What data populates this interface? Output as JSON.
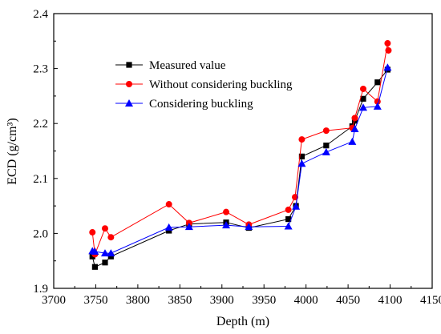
{
  "chart_data": {
    "type": "line",
    "xlabel": "Depth (m)",
    "ylabel": "ECD (g/cm³)",
    "xlim": [
      3700,
      4150
    ],
    "ylim": [
      1.9,
      2.4
    ],
    "xticks": [
      "3700",
      "3750",
      "3800",
      "3850",
      "3900",
      "3950",
      "4000",
      "4050",
      "4100",
      "4150"
    ],
    "yticks": [
      "1.9",
      "2.0",
      "2.1",
      "2.2",
      "2.3",
      "2.4"
    ],
    "legend_position": "top-center",
    "series": [
      {
        "name": "Measured value",
        "color": "#000000",
        "marker": "square",
        "points": [
          [
            3746,
            1.958
          ],
          [
            3749,
            1.939
          ],
          [
            3761,
            1.947
          ],
          [
            3768,
            1.958
          ],
          [
            3837,
            2.005
          ],
          [
            3861,
            2.017
          ],
          [
            3905,
            2.02
          ],
          [
            3932,
            2.01
          ],
          [
            3979,
            2.026
          ],
          [
            3988,
            2.05
          ],
          [
            3995,
            2.14
          ],
          [
            4024,
            2.16
          ],
          [
            4055,
            2.195
          ],
          [
            4058,
            2.205
          ],
          [
            4068,
            2.245
          ],
          [
            4085,
            2.275
          ],
          [
            4097,
            2.298
          ]
        ]
      },
      {
        "name": "Without considering buckling",
        "color": "#ff0000",
        "marker": "circle",
        "points": [
          [
            3746,
            2.002
          ],
          [
            3749,
            1.962
          ],
          [
            3761,
            2.009
          ],
          [
            3768,
            1.993
          ],
          [
            3837,
            2.053
          ],
          [
            3861,
            2.019
          ],
          [
            3905,
            2.039
          ],
          [
            3932,
            2.016
          ],
          [
            3979,
            2.043
          ],
          [
            3987,
            2.066
          ],
          [
            3995,
            2.171
          ],
          [
            4024,
            2.187
          ],
          [
            4055,
            2.192
          ],
          [
            4058,
            2.21
          ],
          [
            4068,
            2.263
          ],
          [
            4085,
            2.24
          ],
          [
            4097,
            2.346
          ],
          [
            4098,
            2.333
          ]
        ]
      },
      {
        "name": "Considering buckling",
        "color": "#0000ff",
        "marker": "triangle",
        "points": [
          [
            3746,
            1.968
          ],
          [
            3749,
            1.967
          ],
          [
            3761,
            1.964
          ],
          [
            3768,
            1.964
          ],
          [
            3837,
            2.011
          ],
          [
            3861,
            2.012
          ],
          [
            3905,
            2.015
          ],
          [
            3932,
            2.012
          ],
          [
            3979,
            2.013
          ],
          [
            3988,
            2.049
          ],
          [
            3995,
            2.127
          ],
          [
            4024,
            2.148
          ],
          [
            4055,
            2.167
          ],
          [
            4058,
            2.19
          ],
          [
            4068,
            2.229
          ],
          [
            4085,
            2.231
          ],
          [
            4097,
            2.302
          ]
        ]
      }
    ]
  }
}
